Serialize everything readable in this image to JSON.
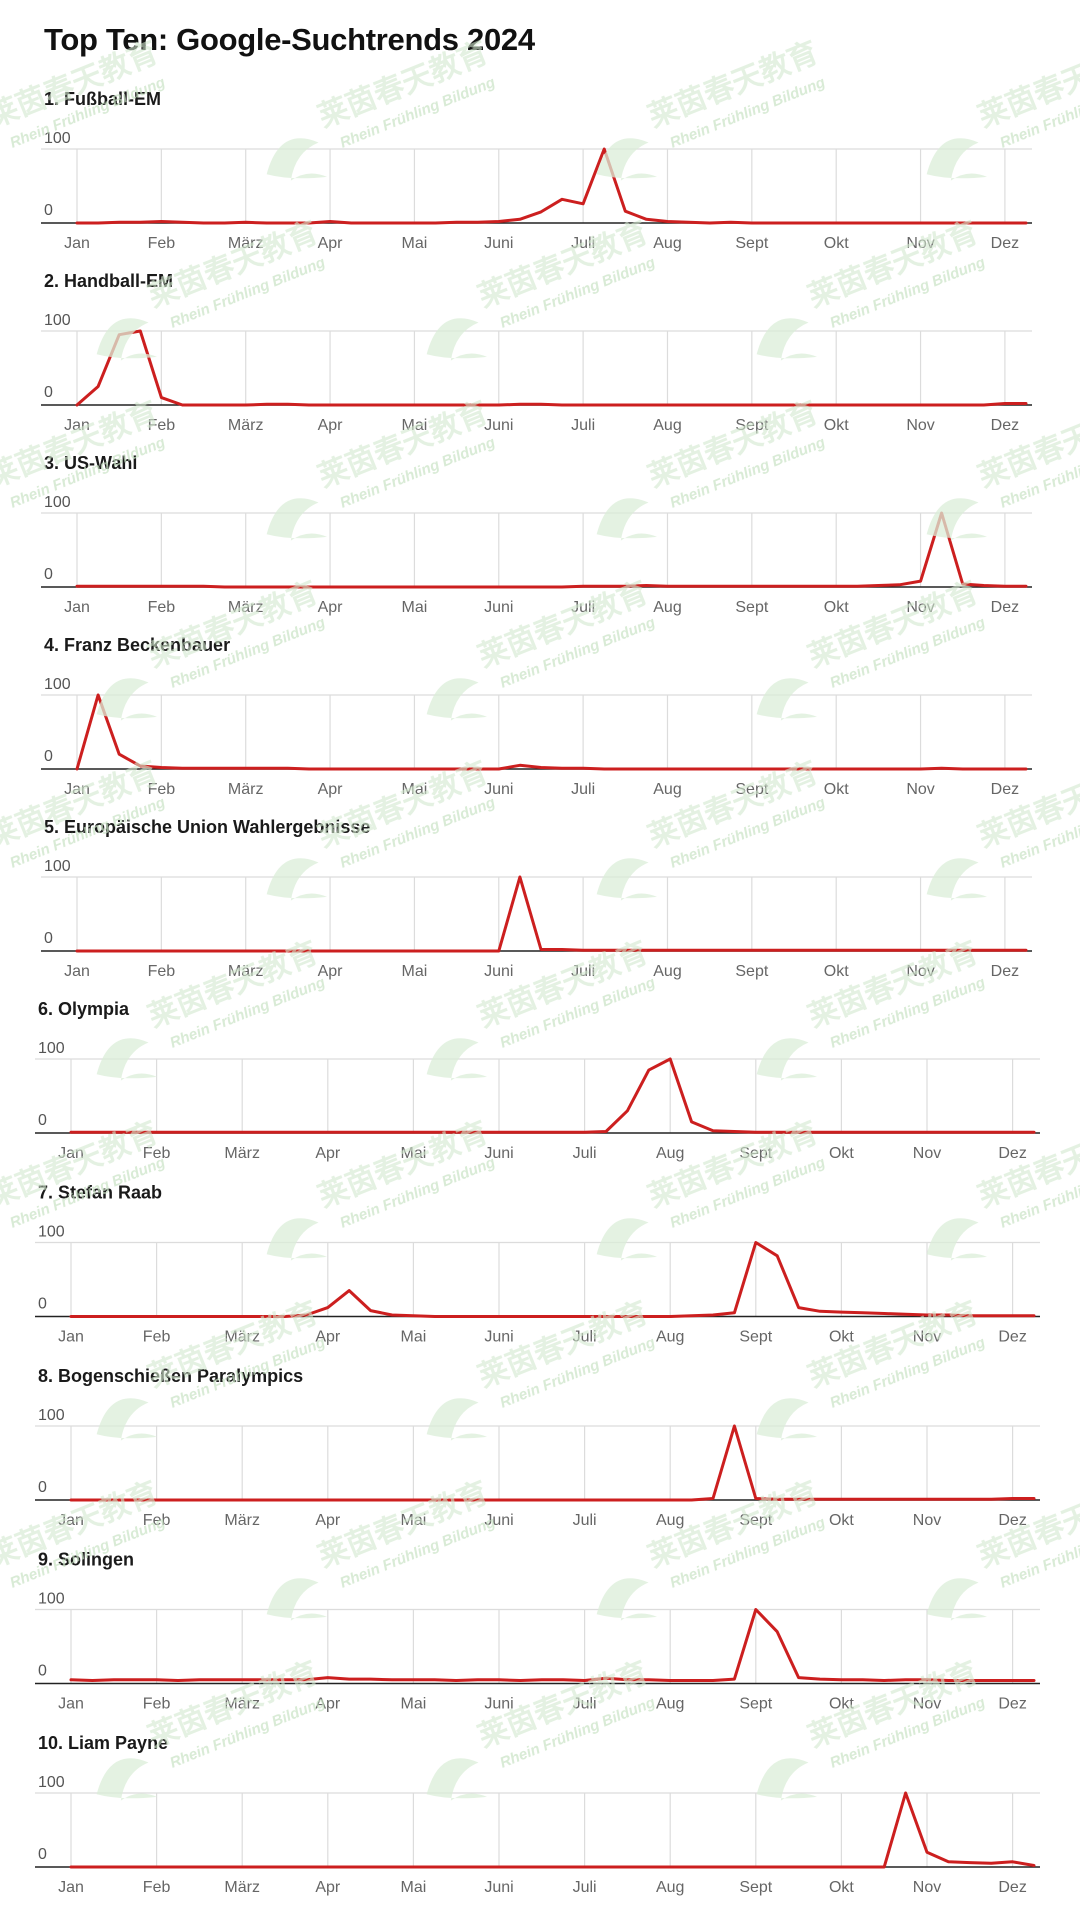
{
  "title": "Top Ten: Google-Suchtrends 2024",
  "colors": {
    "line": "#cc1f1f",
    "grid": "#dcdcdc",
    "axis": "#222222",
    "watermark": "#c9e3c5"
  },
  "watermark": {
    "text": "Rhein Frühling Bildung",
    "cjk": "莱茵春天教育"
  },
  "chart_data": [
    {
      "type": "line",
      "title": "1. Fußball-EM",
      "ylim": [
        0,
        100
      ],
      "yticks": [
        "100",
        "0"
      ],
      "categories": [
        "Jan",
        "Feb",
        "März",
        "Apr",
        "Mai",
        "Juni",
        "Juli",
        "Aug",
        "Sept",
        "Okt",
        "Nov",
        "Dez"
      ],
      "x": [
        0,
        0.25,
        0.5,
        0.75,
        1,
        1.25,
        1.5,
        1.75,
        2,
        2.25,
        2.5,
        2.75,
        3,
        3.25,
        3.5,
        3.75,
        4,
        4.25,
        4.5,
        4.75,
        5,
        5.25,
        5.5,
        5.75,
        6,
        6.25,
        6.5,
        6.75,
        7,
        7.25,
        7.5,
        7.75,
        8,
        8.25,
        8.5,
        8.75,
        9,
        9.25,
        9.5,
        9.75,
        10,
        10.25,
        10.5,
        10.75,
        11,
        11.25
      ],
      "values": [
        0,
        0,
        1,
        1,
        2,
        1,
        0,
        0,
        1,
        0,
        0,
        0,
        2,
        0,
        0,
        0,
        0,
        0,
        1,
        1,
        2,
        5,
        15,
        32,
        26,
        100,
        16,
        5,
        2,
        1,
        0,
        1,
        0,
        0,
        0,
        0,
        0,
        0,
        0,
        0,
        0,
        0,
        0,
        0,
        0,
        0
      ]
    },
    {
      "type": "line",
      "title": "2. Handball-EM",
      "ylim": [
        0,
        100
      ],
      "yticks": [
        "100",
        "0"
      ],
      "categories": [
        "Jan",
        "Feb",
        "März",
        "Apr",
        "Mai",
        "Juni",
        "Juli",
        "Aug",
        "Sept",
        "Okt",
        "Nov",
        "Dez"
      ],
      "x": [
        0,
        0.25,
        0.5,
        0.75,
        1,
        1.25,
        1.5,
        1.75,
        2,
        2.25,
        2.5,
        2.75,
        3,
        3.25,
        3.5,
        3.75,
        4,
        4.25,
        4.5,
        4.75,
        5,
        5.25,
        5.5,
        5.75,
        6,
        6.25,
        6.5,
        6.75,
        7,
        7.25,
        7.5,
        7.75,
        8,
        8.25,
        8.5,
        8.75,
        9,
        9.25,
        9.5,
        9.75,
        10,
        10.25,
        10.5,
        10.75,
        11,
        11.25
      ],
      "values": [
        0,
        25,
        95,
        100,
        10,
        0,
        0,
        0,
        0,
        1,
        1,
        0,
        0,
        0,
        0,
        0,
        0,
        0,
        0,
        0,
        0,
        1,
        1,
        0,
        0,
        0,
        0,
        0,
        0,
        0,
        0,
        0,
        0,
        0,
        0,
        0,
        0,
        0,
        0,
        0,
        0,
        0,
        0,
        0,
        2,
        2
      ]
    },
    {
      "type": "line",
      "title": "3. US-Wahl",
      "ylim": [
        0,
        100
      ],
      "yticks": [
        "100",
        "0"
      ],
      "categories": [
        "Jan",
        "Feb",
        "März",
        "Apr",
        "Mai",
        "Juni",
        "Juli",
        "Aug",
        "Sept",
        "Okt",
        "Nov",
        "Dez"
      ],
      "x": [
        0,
        0.25,
        0.5,
        0.75,
        1,
        1.25,
        1.5,
        1.75,
        2,
        2.25,
        2.5,
        2.75,
        3,
        3.25,
        3.5,
        3.75,
        4,
        4.25,
        4.5,
        4.75,
        5,
        5.25,
        5.5,
        5.75,
        6,
        6.25,
        6.5,
        6.75,
        7,
        7.25,
        7.5,
        7.75,
        8,
        8.25,
        8.5,
        8.75,
        9,
        9.25,
        9.5,
        9.75,
        10,
        10.25,
        10.5,
        10.75,
        11,
        11.25
      ],
      "values": [
        1,
        1,
        1,
        1,
        1,
        1,
        1,
        0,
        0,
        0,
        0,
        0,
        0,
        0,
        0,
        0,
        0,
        0,
        0,
        0,
        0,
        0,
        0,
        0,
        1,
        1,
        1,
        2,
        1,
        1,
        1,
        1,
        1,
        1,
        1,
        1,
        1,
        1,
        2,
        3,
        8,
        100,
        4,
        2,
        1,
        1
      ]
    },
    {
      "type": "line",
      "title": "4. Franz Beckenbauer",
      "ylim": [
        0,
        100
      ],
      "yticks": [
        "100",
        "0"
      ],
      "categories": [
        "Jan",
        "Feb",
        "März",
        "Apr",
        "Mai",
        "Juni",
        "Juli",
        "Aug",
        "Sept",
        "Okt",
        "Nov",
        "Dez"
      ],
      "x": [
        0,
        0.25,
        0.5,
        0.75,
        1,
        1.25,
        1.5,
        1.75,
        2,
        2.25,
        2.5,
        2.75,
        3,
        3.25,
        3.5,
        3.75,
        4,
        4.25,
        4.5,
        4.75,
        5,
        5.25,
        5.5,
        5.75,
        6,
        6.25,
        6.5,
        6.75,
        7,
        7.25,
        7.5,
        7.75,
        8,
        8.25,
        8.5,
        8.75,
        9,
        9.25,
        9.5,
        9.75,
        10,
        10.25,
        10.5,
        10.75,
        11,
        11.25
      ],
      "values": [
        0,
        100,
        20,
        4,
        2,
        1,
        1,
        1,
        1,
        1,
        1,
        0,
        0,
        0,
        0,
        0,
        0,
        0,
        0,
        0,
        0,
        5,
        2,
        1,
        1,
        0,
        0,
        0,
        0,
        0,
        0,
        0,
        0,
        0,
        0,
        0,
        0,
        0,
        0,
        0,
        0,
        1,
        0,
        0,
        0,
        0
      ]
    },
    {
      "type": "line",
      "title": "5. Europäische Union Wahlergebnisse",
      "ylim": [
        0,
        100
      ],
      "yticks": [
        "100",
        "0"
      ],
      "categories": [
        "Jan",
        "Feb",
        "März",
        "Apr",
        "Mai",
        "Juni",
        "Juli",
        "Aug",
        "Sept",
        "Okt",
        "Nov",
        "Dez"
      ],
      "x": [
        0,
        0.25,
        0.5,
        0.75,
        1,
        1.25,
        1.5,
        1.75,
        2,
        2.25,
        2.5,
        2.75,
        3,
        3.25,
        3.5,
        3.75,
        4,
        4.25,
        4.5,
        4.75,
        5,
        5.25,
        5.5,
        5.75,
        6,
        6.25,
        6.5,
        6.75,
        7,
        7.25,
        7.5,
        7.75,
        8,
        8.25,
        8.5,
        8.75,
        9,
        9.25,
        9.5,
        9.75,
        10,
        10.25,
        10.5,
        10.75,
        11,
        11.25
      ],
      "values": [
        0,
        0,
        0,
        0,
        0,
        0,
        0,
        0,
        0,
        0,
        0,
        0,
        0,
        0,
        0,
        0,
        0,
        0,
        0,
        0,
        0,
        100,
        2,
        2,
        1,
        1,
        1,
        1,
        1,
        1,
        1,
        1,
        1,
        1,
        1,
        1,
        1,
        1,
        1,
        1,
        1,
        1,
        1,
        1,
        1,
        1
      ]
    },
    {
      "type": "line",
      "title": "6. Olympia",
      "ylim": [
        0,
        100
      ],
      "yticks": [
        "100",
        "0"
      ],
      "categories": [
        "Jan",
        "Feb",
        "März",
        "Apr",
        "Mai",
        "Juni",
        "Juli",
        "Aug",
        "Sept",
        "Okt",
        "Nov",
        "Dez"
      ],
      "x": [
        0,
        0.25,
        0.5,
        0.75,
        1,
        1.25,
        1.5,
        1.75,
        2,
        2.25,
        2.5,
        2.75,
        3,
        3.25,
        3.5,
        3.75,
        4,
        4.25,
        4.5,
        4.75,
        5,
        5.25,
        5.5,
        5.75,
        6,
        6.25,
        6.5,
        6.75,
        7,
        7.25,
        7.5,
        7.75,
        8,
        8.25,
        8.5,
        8.75,
        9,
        9.25,
        9.5,
        9.75,
        10,
        10.25,
        10.5,
        10.75,
        11,
        11.25
      ],
      "values": [
        1,
        1,
        1,
        1,
        1,
        1,
        1,
        1,
        1,
        1,
        1,
        1,
        1,
        1,
        1,
        1,
        1,
        1,
        1,
        1,
        1,
        1,
        1,
        1,
        1,
        2,
        30,
        85,
        100,
        15,
        3,
        2,
        1,
        1,
        1,
        1,
        1,
        1,
        1,
        1,
        1,
        1,
        1,
        1,
        1,
        1
      ]
    },
    {
      "type": "line",
      "title": "7. Stefan Raab",
      "ylim": [
        0,
        100
      ],
      "yticks": [
        "100",
        "0"
      ],
      "categories": [
        "Jan",
        "Feb",
        "März",
        "Apr",
        "Mai",
        "Juni",
        "Juli",
        "Aug",
        "Sept",
        "Okt",
        "Nov",
        "Dez"
      ],
      "x": [
        0,
        0.25,
        0.5,
        0.75,
        1,
        1.25,
        1.5,
        1.75,
        2,
        2.25,
        2.5,
        2.75,
        3,
        3.25,
        3.5,
        3.75,
        4,
        4.25,
        4.5,
        4.75,
        5,
        5.25,
        5.5,
        5.75,
        6,
        6.25,
        6.5,
        6.75,
        7,
        7.25,
        7.5,
        7.75,
        8,
        8.25,
        8.5,
        8.75,
        9,
        9.25,
        9.5,
        9.75,
        10,
        10.25,
        10.5,
        10.75,
        11,
        11.25
      ],
      "values": [
        0,
        0,
        0,
        0,
        0,
        0,
        0,
        0,
        0,
        0,
        0,
        2,
        12,
        35,
        8,
        2,
        1,
        0,
        0,
        0,
        0,
        0,
        0,
        0,
        0,
        0,
        0,
        0,
        0,
        1,
        2,
        5,
        100,
        82,
        12,
        7,
        6,
        5,
        4,
        3,
        2,
        2,
        1,
        1,
        1,
        1
      ]
    },
    {
      "type": "line",
      "title": "8. Bogenschießen Paralympics",
      "ylim": [
        0,
        100
      ],
      "yticks": [
        "100",
        "0"
      ],
      "categories": [
        "Jan",
        "Feb",
        "März",
        "Apr",
        "Mai",
        "Juni",
        "Juli",
        "Aug",
        "Sept",
        "Okt",
        "Nov",
        "Dez"
      ],
      "x": [
        0,
        0.25,
        0.5,
        0.75,
        1,
        1.25,
        1.5,
        1.75,
        2,
        2.25,
        2.5,
        2.75,
        3,
        3.25,
        3.5,
        3.75,
        4,
        4.25,
        4.5,
        4.75,
        5,
        5.25,
        5.5,
        5.75,
        6,
        6.25,
        6.5,
        6.75,
        7,
        7.25,
        7.5,
        7.75,
        8,
        8.25,
        8.5,
        8.75,
        9,
        9.25,
        9.5,
        9.75,
        10,
        10.25,
        10.5,
        10.75,
        11,
        11.25
      ],
      "values": [
        0,
        0,
        0,
        0,
        0,
        0,
        0,
        0,
        0,
        0,
        0,
        0,
        0,
        0,
        0,
        0,
        0,
        0,
        0,
        0,
        0,
        0,
        0,
        0,
        0,
        0,
        0,
        0,
        0,
        0,
        2,
        100,
        2,
        1,
        1,
        1,
        1,
        1,
        1,
        1,
        1,
        1,
        1,
        1,
        2,
        2
      ]
    },
    {
      "type": "line",
      "title": "9. Solingen",
      "ylim": [
        0,
        100
      ],
      "yticks": [
        "100",
        "0"
      ],
      "categories": [
        "Jan",
        "Feb",
        "März",
        "Apr",
        "Mai",
        "Juni",
        "Juli",
        "Aug",
        "Sept",
        "Okt",
        "Nov",
        "Dez"
      ],
      "x": [
        0,
        0.25,
        0.5,
        0.75,
        1,
        1.25,
        1.5,
        1.75,
        2,
        2.25,
        2.5,
        2.75,
        3,
        3.25,
        3.5,
        3.75,
        4,
        4.25,
        4.5,
        4.75,
        5,
        5.25,
        5.5,
        5.75,
        6,
        6.25,
        6.5,
        6.75,
        7,
        7.25,
        7.5,
        7.75,
        8,
        8.25,
        8.5,
        8.75,
        9,
        9.25,
        9.5,
        9.75,
        10,
        10.25,
        10.5,
        10.75,
        11,
        11.25
      ],
      "values": [
        5,
        4,
        5,
        5,
        5,
        4,
        5,
        5,
        5,
        5,
        5,
        5,
        8,
        6,
        6,
        5,
        5,
        5,
        4,
        5,
        5,
        4,
        5,
        5,
        4,
        7,
        5,
        5,
        4,
        4,
        4,
        6,
        100,
        70,
        8,
        6,
        5,
        5,
        4,
        5,
        5,
        4,
        4,
        4,
        4,
        4
      ]
    },
    {
      "type": "line",
      "title": "10. Liam Payne",
      "ylim": [
        0,
        100
      ],
      "yticks": [
        "100",
        "0"
      ],
      "categories": [
        "Jan",
        "Feb",
        "März",
        "Apr",
        "Mai",
        "Juni",
        "Juli",
        "Aug",
        "Sept",
        "Okt",
        "Nov",
        "Dez"
      ],
      "x": [
        0,
        0.25,
        0.5,
        0.75,
        1,
        1.25,
        1.5,
        1.75,
        2,
        2.25,
        2.5,
        2.75,
        3,
        3.25,
        3.5,
        3.75,
        4,
        4.25,
        4.5,
        4.75,
        5,
        5.25,
        5.5,
        5.75,
        6,
        6.25,
        6.5,
        6.75,
        7,
        7.25,
        7.5,
        7.75,
        8,
        8.25,
        8.5,
        8.75,
        9,
        9.25,
        9.5,
        9.75,
        10,
        10.25,
        10.5,
        10.75,
        11,
        11.25
      ],
      "values": [
        0,
        0,
        0,
        0,
        0,
        0,
        0,
        0,
        0,
        0,
        0,
        0,
        0,
        0,
        0,
        0,
        0,
        0,
        0,
        0,
        0,
        0,
        0,
        0,
        0,
        0,
        0,
        0,
        0,
        0,
        0,
        0,
        0,
        0,
        0,
        0,
        0,
        0,
        0,
        100,
        20,
        7,
        6,
        5,
        7,
        2
      ]
    }
  ]
}
